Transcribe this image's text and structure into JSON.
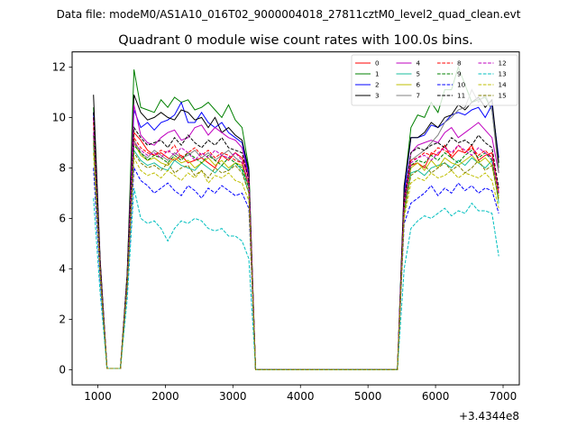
{
  "suptitle": "Data file: modeM0/AS1A10_016T02_9000004018_27811cztM0_level2_quad_clean.evt",
  "chart_data": {
    "type": "line",
    "title": "Quadrant 0 module wise count rates with 100.0s bins.",
    "xlabel": "",
    "ylabel": "",
    "x_offset_label": "+3.4344e8",
    "xlim": [
      620,
      7240
    ],
    "ylim": [
      -0.6,
      12.6
    ],
    "x_ticks": [
      1000,
      2000,
      3000,
      4000,
      5000,
      6000,
      7000
    ],
    "x_tick_labels": [
      "1000",
      "2000",
      "3000",
      "4000",
      "5000",
      "6000",
      "7000"
    ],
    "y_ticks": [
      0,
      2,
      4,
      6,
      8,
      10,
      12
    ],
    "y_tick_labels": [
      "0",
      "2",
      "4",
      "6",
      "8",
      "10",
      "12"
    ],
    "grid": false,
    "legend_position": "top-right",
    "legend_columns": 4,
    "x": [
      936,
      1036,
      1136,
      1236,
      1336,
      1436,
      1536,
      1636,
      1736,
      1836,
      1936,
      2036,
      2136,
      2236,
      2336,
      2436,
      2536,
      2636,
      2736,
      2836,
      2936,
      3036,
      3136,
      3236,
      3336,
      3436,
      3536,
      3636,
      3736,
      3836,
      3936,
      4036,
      4136,
      4236,
      4336,
      4436,
      4536,
      4636,
      4736,
      4836,
      4936,
      5036,
      5136,
      5236,
      5336,
      5436,
      5536,
      5636,
      5736,
      5836,
      5936,
      6036,
      6136,
      6236,
      6336,
      6436,
      6536,
      6636,
      6736,
      6836,
      6936
    ],
    "series": [
      {
        "name": "0",
        "color": "#ff0000",
        "dash": "solid",
        "values": [
          10.0,
          4.0,
          0.05,
          0.05,
          0.05,
          3.5,
          9.4,
          9.1,
          8.7,
          8.5,
          8.6,
          8.4,
          8.3,
          8.5,
          8.2,
          8.3,
          8.4,
          8.2,
          8.0,
          8.5,
          8.3,
          8.6,
          8.4,
          7.6,
          0.0,
          0.0,
          0.0,
          0.0,
          0.0,
          0.0,
          0.0,
          0.0,
          0.0,
          0.0,
          0.0,
          0.0,
          0.0,
          0.0,
          0.0,
          0.0,
          0.0,
          0.0,
          0.0,
          0.0,
          0.0,
          0.0,
          6.5,
          8.1,
          8.2,
          8.0,
          8.6,
          8.5,
          8.9,
          8.4,
          8.7,
          8.6,
          8.9,
          8.3,
          8.5,
          8.6,
          7.0
        ]
      },
      {
        "name": "1",
        "color": "#008000",
        "dash": "solid",
        "values": [
          10.4,
          4.2,
          0.05,
          0.05,
          0.05,
          3.8,
          11.9,
          10.4,
          10.3,
          10.2,
          10.7,
          10.4,
          10.8,
          10.6,
          10.7,
          10.3,
          10.4,
          10.6,
          10.3,
          10.0,
          10.5,
          9.9,
          9.6,
          8.0,
          0.0,
          0.0,
          0.0,
          0.0,
          0.0,
          0.0,
          0.0,
          0.0,
          0.0,
          0.0,
          0.0,
          0.0,
          0.0,
          0.0,
          0.0,
          0.0,
          0.0,
          0.0,
          0.0,
          0.0,
          0.0,
          0.0,
          7.2,
          9.6,
          10.1,
          10.0,
          10.6,
          10.2,
          11.1,
          11.1,
          12.0,
          11.3,
          10.6,
          10.7,
          10.8,
          10.3,
          8.0
        ]
      },
      {
        "name": "2",
        "color": "#0000ff",
        "dash": "solid",
        "values": [
          10.2,
          4.2,
          0.05,
          0.05,
          0.05,
          3.7,
          10.3,
          9.6,
          9.8,
          9.5,
          9.8,
          9.9,
          10.1,
          10.6,
          9.8,
          9.8,
          10.2,
          9.8,
          9.6,
          9.8,
          9.4,
          9.2,
          9.0,
          7.7,
          0.0,
          0.0,
          0.0,
          0.0,
          0.0,
          0.0,
          0.0,
          0.0,
          0.0,
          0.0,
          0.0,
          0.0,
          0.0,
          0.0,
          0.0,
          0.0,
          0.0,
          0.0,
          0.0,
          0.0,
          0.0,
          0.0,
          7.0,
          9.2,
          9.2,
          9.3,
          9.7,
          9.6,
          9.8,
          10.1,
          10.2,
          10.1,
          10.3,
          10.4,
          10.0,
          10.5,
          8.4
        ]
      },
      {
        "name": "3",
        "color": "#000000",
        "dash": "solid",
        "values": [
          10.9,
          4.3,
          0.05,
          0.05,
          0.05,
          3.8,
          10.9,
          10.2,
          9.9,
          10.0,
          10.2,
          10.0,
          9.9,
          10.3,
          10.2,
          9.9,
          10.0,
          9.6,
          10.0,
          9.4,
          9.6,
          9.3,
          9.1,
          7.9,
          0.0,
          0.0,
          0.0,
          0.0,
          0.0,
          0.0,
          0.0,
          0.0,
          0.0,
          0.0,
          0.0,
          0.0,
          0.0,
          0.0,
          0.0,
          0.0,
          0.0,
          0.0,
          0.0,
          0.0,
          0.0,
          0.0,
          7.3,
          9.2,
          9.2,
          9.4,
          9.8,
          9.6,
          10.0,
          10.1,
          10.5,
          10.3,
          10.6,
          10.8,
          10.4,
          10.7,
          8.2
        ]
      },
      {
        "name": "4",
        "color": "#bf00bf",
        "dash": "solid",
        "values": [
          10.0,
          4.1,
          0.05,
          0.05,
          0.05,
          3.6,
          10.5,
          9.3,
          9.0,
          8.9,
          9.2,
          9.4,
          9.5,
          9.1,
          9.2,
          9.6,
          9.7,
          9.3,
          9.6,
          9.4,
          9.2,
          9.1,
          8.8,
          7.6,
          0.0,
          0.0,
          0.0,
          0.0,
          0.0,
          0.0,
          0.0,
          0.0,
          0.0,
          0.0,
          0.0,
          0.0,
          0.0,
          0.0,
          0.0,
          0.0,
          0.0,
          0.0,
          0.0,
          0.0,
          0.0,
          0.0,
          6.8,
          8.6,
          8.9,
          9.0,
          9.1,
          9.0,
          9.4,
          9.6,
          9.2,
          9.4,
          9.6,
          9.8,
          9.5,
          9.2,
          7.8
        ]
      },
      {
        "name": "5",
        "color": "#1abc9c",
        "dash": "solid",
        "values": [
          8.9,
          3.8,
          0.05,
          0.05,
          0.05,
          3.4,
          8.7,
          8.3,
          8.1,
          8.2,
          8.0,
          7.9,
          8.3,
          8.1,
          8.0,
          7.9,
          8.2,
          8.0,
          7.8,
          8.1,
          7.9,
          8.2,
          7.9,
          7.0,
          0.0,
          0.0,
          0.0,
          0.0,
          0.0,
          0.0,
          0.0,
          0.0,
          0.0,
          0.0,
          0.0,
          0.0,
          0.0,
          0.0,
          0.0,
          0.0,
          0.0,
          0.0,
          0.0,
          0.0,
          0.0,
          0.0,
          6.2,
          7.8,
          7.9,
          7.7,
          8.0,
          8.1,
          8.2,
          8.0,
          8.3,
          8.1,
          8.4,
          8.2,
          8.0,
          8.3,
          6.6
        ]
      },
      {
        "name": "6",
        "color": "#bfbf00",
        "dash": "solid",
        "values": [
          9.2,
          3.9,
          0.05,
          0.05,
          0.05,
          3.5,
          9.0,
          8.5,
          8.3,
          8.4,
          8.2,
          8.1,
          8.4,
          8.2,
          8.3,
          8.0,
          8.2,
          8.4,
          8.1,
          8.3,
          8.0,
          8.2,
          8.1,
          7.2,
          0.0,
          0.0,
          0.0,
          0.0,
          0.0,
          0.0,
          0.0,
          0.0,
          0.0,
          0.0,
          0.0,
          0.0,
          0.0,
          0.0,
          0.0,
          0.0,
          0.0,
          0.0,
          0.0,
          0.0,
          0.0,
          0.0,
          6.3,
          8.0,
          8.2,
          7.9,
          8.3,
          8.0,
          8.4,
          8.2,
          8.1,
          8.3,
          8.5,
          8.2,
          8.4,
          8.1,
          6.8
        ]
      },
      {
        "name": "7",
        "color": "#808080",
        "dash": "solid",
        "values": [
          9.6,
          4.0,
          0.05,
          0.05,
          0.05,
          3.6,
          9.1,
          8.6,
          8.4,
          8.7,
          8.5,
          8.3,
          8.6,
          8.4,
          8.5,
          8.7,
          8.4,
          8.6,
          8.3,
          8.5,
          8.7,
          8.4,
          8.2,
          7.3,
          0.0,
          0.0,
          0.0,
          0.0,
          0.0,
          0.0,
          0.0,
          0.0,
          0.0,
          0.0,
          0.0,
          0.0,
          0.0,
          0.0,
          0.0,
          0.0,
          0.0,
          0.0,
          0.0,
          0.0,
          0.0,
          0.0,
          6.5,
          8.3,
          8.5,
          8.7,
          9.0,
          9.3,
          9.8,
          10.0,
          10.3,
          10.4,
          11.1,
          10.6,
          10.9,
          10.3,
          7.8
        ]
      },
      {
        "name": "8",
        "color": "#ff0000",
        "dash": "dashed",
        "values": [
          9.8,
          4.0,
          0.05,
          0.05,
          0.05,
          3.6,
          9.2,
          8.8,
          8.6,
          8.5,
          8.7,
          8.6,
          8.9,
          8.4,
          8.6,
          8.8,
          8.5,
          8.7,
          8.4,
          8.6,
          8.5,
          8.3,
          8.2,
          7.4,
          0.0,
          0.0,
          0.0,
          0.0,
          0.0,
          0.0,
          0.0,
          0.0,
          0.0,
          0.0,
          0.0,
          0.0,
          0.0,
          0.0,
          0.0,
          0.0,
          0.0,
          0.0,
          0.0,
          0.0,
          0.0,
          0.0,
          6.6,
          8.3,
          8.4,
          8.6,
          8.5,
          8.8,
          8.7,
          8.5,
          8.9,
          8.6,
          8.8,
          8.5,
          8.7,
          8.4,
          7.1
        ]
      },
      {
        "name": "9",
        "color": "#008000",
        "dash": "dashed",
        "values": [
          9.3,
          3.9,
          0.05,
          0.05,
          0.05,
          3.5,
          8.9,
          8.6,
          8.3,
          8.5,
          8.4,
          8.2,
          8.5,
          8.3,
          8.6,
          8.4,
          8.2,
          8.5,
          8.3,
          8.1,
          8.4,
          8.2,
          8.0,
          7.2,
          0.0,
          0.0,
          0.0,
          0.0,
          0.0,
          0.0,
          0.0,
          0.0,
          0.0,
          0.0,
          0.0,
          0.0,
          0.0,
          0.0,
          0.0,
          0.0,
          0.0,
          0.0,
          0.0,
          0.0,
          0.0,
          0.0,
          6.4,
          8.1,
          8.3,
          8.2,
          8.5,
          8.3,
          8.6,
          8.4,
          8.2,
          8.5,
          8.7,
          8.4,
          8.6,
          8.3,
          6.9
        ]
      },
      {
        "name": "10",
        "color": "#0000ff",
        "dash": "dashed",
        "values": [
          8.0,
          3.5,
          0.05,
          0.05,
          0.05,
          3.2,
          8.0,
          7.5,
          7.3,
          7.0,
          7.2,
          7.4,
          7.1,
          6.9,
          7.3,
          7.1,
          6.8,
          7.2,
          7.0,
          7.3,
          7.1,
          6.9,
          7.0,
          6.4,
          0.0,
          0.0,
          0.0,
          0.0,
          0.0,
          0.0,
          0.0,
          0.0,
          0.0,
          0.0,
          0.0,
          0.0,
          0.0,
          0.0,
          0.0,
          0.0,
          0.0,
          0.0,
          0.0,
          0.0,
          0.0,
          0.0,
          5.8,
          6.6,
          6.8,
          7.0,
          7.3,
          6.9,
          7.2,
          7.0,
          7.4,
          7.1,
          7.3,
          7.0,
          7.2,
          7.1,
          6.2
        ]
      },
      {
        "name": "11",
        "color": "#000000",
        "dash": "dashed",
        "values": [
          10.2,
          4.1,
          0.05,
          0.05,
          0.05,
          3.7,
          9.6,
          9.2,
          8.9,
          9.0,
          9.1,
          8.8,
          9.2,
          8.9,
          9.3,
          9.0,
          8.8,
          9.1,
          8.9,
          9.2,
          8.8,
          8.7,
          8.6,
          7.5,
          0.0,
          0.0,
          0.0,
          0.0,
          0.0,
          0.0,
          0.0,
          0.0,
          0.0,
          0.0,
          0.0,
          0.0,
          0.0,
          0.0,
          0.0,
          0.0,
          0.0,
          0.0,
          0.0,
          0.0,
          0.0,
          0.0,
          6.7,
          8.6,
          8.8,
          8.7,
          8.9,
          9.0,
          8.8,
          9.2,
          9.0,
          9.1,
          8.9,
          9.3,
          9.0,
          8.8,
          7.2
        ]
      },
      {
        "name": "12",
        "color": "#bf00bf",
        "dash": "dashed",
        "values": [
          9.4,
          3.9,
          0.05,
          0.05,
          0.05,
          3.5,
          9.0,
          8.7,
          8.5,
          8.6,
          8.4,
          8.7,
          8.5,
          8.8,
          8.6,
          8.3,
          8.6,
          8.4,
          8.7,
          8.5,
          8.4,
          8.6,
          8.3,
          7.3,
          0.0,
          0.0,
          0.0,
          0.0,
          0.0,
          0.0,
          0.0,
          0.0,
          0.0,
          0.0,
          0.0,
          0.0,
          0.0,
          0.0,
          0.0,
          0.0,
          0.0,
          0.0,
          0.0,
          0.0,
          0.0,
          0.0,
          6.5,
          8.2,
          8.4,
          8.5,
          8.3,
          8.6,
          8.8,
          8.6,
          8.9,
          8.7,
          8.5,
          8.8,
          8.6,
          8.4,
          7.0
        ]
      },
      {
        "name": "13",
        "color": "#00bfbf",
        "dash": "dashed",
        "values": [
          6.8,
          3.0,
          0.05,
          0.05,
          0.05,
          2.8,
          7.2,
          6.0,
          5.8,
          5.9,
          5.6,
          5.1,
          5.6,
          5.9,
          5.8,
          6.0,
          5.9,
          5.6,
          5.5,
          5.6,
          5.3,
          5.3,
          5.1,
          4.4,
          0.0,
          0.0,
          0.0,
          0.0,
          0.0,
          0.0,
          0.0,
          0.0,
          0.0,
          0.0,
          0.0,
          0.0,
          0.0,
          0.0,
          0.0,
          0.0,
          0.0,
          0.0,
          0.0,
          0.0,
          0.0,
          0.0,
          4.0,
          5.6,
          5.9,
          6.1,
          6.0,
          6.2,
          6.4,
          6.1,
          6.3,
          6.2,
          6.6,
          6.3,
          6.3,
          6.2,
          4.5
        ]
      },
      {
        "name": "14",
        "color": "#bfbf00",
        "dash": "dashed",
        "values": [
          8.6,
          3.7,
          0.05,
          0.05,
          0.05,
          3.3,
          8.4,
          7.9,
          7.7,
          7.8,
          7.6,
          7.9,
          7.7,
          7.5,
          7.8,
          7.6,
          7.9,
          7.4,
          7.7,
          7.6,
          7.8,
          7.5,
          7.4,
          6.7,
          0.0,
          0.0,
          0.0,
          0.0,
          0.0,
          0.0,
          0.0,
          0.0,
          0.0,
          0.0,
          0.0,
          0.0,
          0.0,
          0.0,
          0.0,
          0.0,
          0.0,
          0.0,
          0.0,
          0.0,
          0.0,
          0.0,
          6.0,
          7.4,
          7.6,
          7.5,
          7.8,
          7.6,
          7.7,
          7.9,
          7.6,
          7.8,
          7.7,
          7.6,
          7.8,
          7.5,
          6.4
        ]
      },
      {
        "name": "15",
        "color": "#808000",
        "dash": "dashed",
        "values": [
          9.0,
          3.8,
          0.05,
          0.05,
          0.05,
          3.4,
          8.6,
          8.2,
          8.0,
          8.1,
          7.9,
          8.2,
          7.8,
          8.0,
          8.1,
          7.7,
          7.9,
          7.6,
          8.0,
          7.8,
          7.9,
          8.1,
          7.8,
          7.0,
          0.0,
          0.0,
          0.0,
          0.0,
          0.0,
          0.0,
          0.0,
          0.0,
          0.0,
          0.0,
          0.0,
          0.0,
          0.0,
          0.0,
          0.0,
          0.0,
          0.0,
          0.0,
          0.0,
          0.0,
          0.0,
          0.0,
          6.2,
          7.7,
          7.9,
          8.1,
          7.8,
          8.0,
          8.2,
          7.9,
          8.1,
          7.8,
          8.0,
          8.3,
          7.9,
          8.1,
          6.7
        ]
      }
    ]
  }
}
